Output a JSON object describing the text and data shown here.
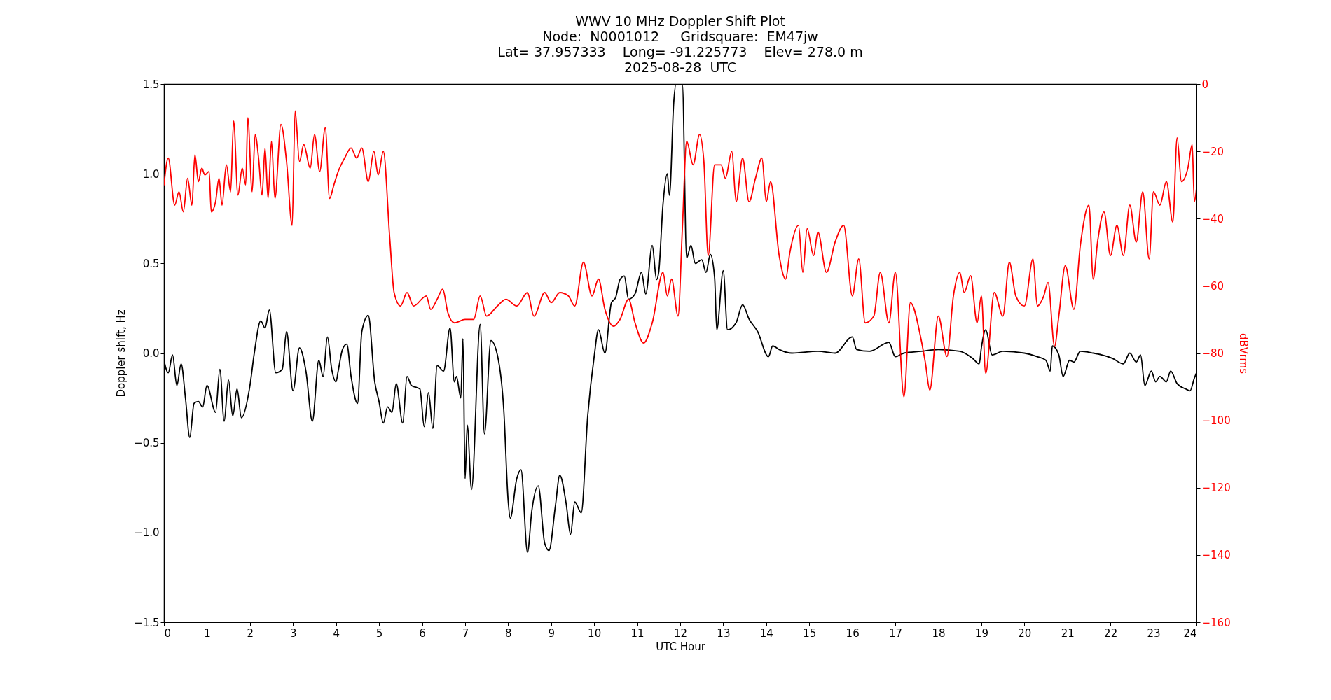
{
  "chart_data": {
    "type": "line",
    "title": "WWV 10 MHz Doppler Shift Plot\nNode:  N0001012     Gridsquare:  EM47jw\nLat= 37.957333    Long= -91.225773    Elev= 278.0 m\n2025-08-28  UTC",
    "xlabel": "UTC Hour",
    "ylabel": "Doppler shift, Hz",
    "y2label": "dBVrms",
    "xlim": [
      0,
      24
    ],
    "xticks": [
      0,
      1,
      2,
      3,
      4,
      5,
      6,
      7,
      8,
      9,
      10,
      11,
      12,
      13,
      14,
      15,
      16,
      17,
      18,
      19,
      20,
      21,
      22,
      23,
      24
    ],
    "ylim": [
      -1.5,
      1.5
    ],
    "yticks": [
      {
        "value": -1.5,
        "label": "−1.5"
      },
      {
        "value": -1.0,
        "label": "−1.0"
      },
      {
        "value": -0.5,
        "label": "−0.5"
      },
      {
        "value": 0,
        "label": "0.0"
      },
      {
        "value": 0.5,
        "label": "0.5"
      },
      {
        "value": 1.0,
        "label": "1.0"
      },
      {
        "value": 1.5,
        "label": "1.5"
      }
    ],
    "y2lim": [
      -160,
      0
    ],
    "y2ticks": [
      {
        "value": -160,
        "label": "−160"
      },
      {
        "value": -140,
        "label": "−140"
      },
      {
        "value": -120,
        "label": "−120"
      },
      {
        "value": -100,
        "label": "−100"
      },
      {
        "value": -80,
        "label": "−80"
      },
      {
        "value": -60,
        "label": "−60"
      },
      {
        "value": -40,
        "label": "−40"
      },
      {
        "value": -20,
        "label": "−20"
      },
      0
    ],
    "ref_lines": [
      {
        "axis": "y",
        "value": 0,
        "color": "#808080"
      }
    ],
    "series": [
      {
        "color": "#000000",
        "x": [
          0,
          0.1,
          0.2,
          0.3,
          0.4,
          0.5,
          0.6,
          0.7,
          0.8,
          0.9,
          1.0,
          1.2,
          1.3,
          1.4,
          1.5,
          1.6,
          1.7,
          1.8,
          2.0,
          2.1,
          2.25,
          2.35,
          2.45,
          2.6,
          2.75,
          2.85,
          3.0,
          3.15,
          3.3,
          3.45,
          3.6,
          3.7,
          3.8,
          3.9,
          4.0,
          4.05,
          4.15,
          4.25,
          4.35,
          4.5,
          4.6,
          4.75,
          4.9,
          5.0,
          5.1,
          5.2,
          5.3,
          5.4,
          5.55,
          5.65,
          5.75,
          5.85,
          5.95,
          6.05,
          6.15,
          6.25,
          6.35,
          6.5,
          6.65,
          6.75,
          6.8,
          6.9,
          6.95,
          7.0,
          7.05,
          7.15,
          7.35,
          7.45,
          7.6,
          7.75,
          7.9,
          8.0,
          8.05,
          8.2,
          8.3,
          8.45,
          8.55,
          8.7,
          8.85,
          8.95,
          9.1,
          9.2,
          9.35,
          9.45,
          9.55,
          9.7,
          9.85,
          10.0,
          10.1,
          10.25,
          10.4,
          10.5,
          10.6,
          10.7,
          10.8,
          10.95,
          11.1,
          11.2,
          11.35,
          11.45,
          11.5,
          11.6,
          11.7,
          11.75,
          11.85,
          11.9,
          12.05,
          12.15,
          12.25,
          12.35,
          12.5,
          12.6,
          12.7,
          12.8,
          12.85,
          13.0,
          13.1,
          13.3,
          13.45,
          13.6,
          13.8,
          14.05,
          14.15,
          14.3,
          14.6,
          15.2,
          15.6,
          16.0,
          16.1,
          16.4,
          16.85,
          17.0,
          17.2,
          17.6,
          18.0,
          18.5,
          18.8,
          18.95,
          19.0,
          19.1,
          19.25,
          19.5,
          20.0,
          20.3,
          20.5,
          20.6,
          20.65,
          20.8,
          20.9,
          21.05,
          21.15,
          21.3,
          21.6,
          21.8,
          22.05,
          22.3,
          22.45,
          22.6,
          22.7,
          22.8,
          22.95,
          23.05,
          23.15,
          23.3,
          23.4,
          23.55,
          23.75,
          23.85,
          23.95,
          24
        ],
        "values": [
          -0.04,
          -0.11,
          -0.01,
          -0.18,
          -0.06,
          -0.25,
          -0.47,
          -0.28,
          -0.27,
          -0.3,
          -0.18,
          -0.33,
          -0.09,
          -0.38,
          -0.15,
          -0.35,
          -0.2,
          -0.36,
          -0.18,
          0.0,
          0.18,
          0.14,
          0.24,
          -0.11,
          -0.09,
          0.12,
          -0.21,
          0.03,
          -0.1,
          -0.38,
          -0.04,
          -0.13,
          0.09,
          -0.09,
          -0.16,
          -0.1,
          0.02,
          0.05,
          -0.13,
          -0.28,
          0.12,
          0.21,
          -0.16,
          -0.27,
          -0.39,
          -0.3,
          -0.33,
          -0.17,
          -0.39,
          -0.13,
          -0.18,
          -0.19,
          -0.2,
          -0.41,
          -0.22,
          -0.42,
          -0.07,
          -0.1,
          0.14,
          -0.16,
          -0.13,
          -0.25,
          0.08,
          -0.7,
          -0.4,
          -0.76,
          0.16,
          -0.45,
          0.07,
          -0.01,
          -0.32,
          -0.82,
          -0.92,
          -0.7,
          -0.65,
          -1.11,
          -0.88,
          -0.74,
          -1.06,
          -1.1,
          -0.85,
          -0.68,
          -0.84,
          -1.01,
          -0.83,
          -0.89,
          -0.35,
          -0.02,
          0.13,
          0.0,
          0.28,
          0.31,
          0.41,
          0.43,
          0.3,
          0.33,
          0.45,
          0.33,
          0.6,
          0.41,
          0.45,
          0.83,
          1.0,
          0.88,
          1.4,
          1.5,
          1.5,
          0.53,
          0.6,
          0.5,
          0.52,
          0.45,
          0.55,
          0.42,
          0.13,
          0.46,
          0.13,
          0.17,
          0.27,
          0.19,
          0.12,
          -0.02,
          0.04,
          0.02,
          0.0,
          0.01,
          0.0,
          0.09,
          0.02,
          0.01,
          0.06,
          -0.02,
          0.0,
          0.01,
          0.02,
          0.01,
          -0.03,
          -0.06,
          0.03,
          0.13,
          -0.01,
          0.01,
          0.0,
          -0.02,
          -0.04,
          -0.1,
          0.04,
          -0.01,
          -0.13,
          -0.04,
          -0.05,
          0.01,
          0.0,
          -0.01,
          -0.03,
          -0.06,
          0.0,
          -0.05,
          -0.01,
          -0.18,
          -0.1,
          -0.16,
          -0.13,
          -0.16,
          -0.1,
          -0.17,
          -0.2,
          -0.21,
          -0.14,
          -0.11
        ]
      },
      {
        "color": "#ff0000",
        "axis": "y2",
        "x": [
          0,
          0.1,
          0.25,
          0.35,
          0.45,
          0.55,
          0.65,
          0.72,
          0.8,
          0.88,
          0.95,
          1.05,
          1.1,
          1.2,
          1.28,
          1.35,
          1.45,
          1.55,
          1.62,
          1.72,
          1.82,
          1.9,
          1.95,
          2.05,
          2.12,
          2.2,
          2.28,
          2.35,
          2.42,
          2.5,
          2.58,
          2.72,
          2.85,
          2.98,
          3.05,
          3.15,
          3.25,
          3.4,
          3.5,
          3.62,
          3.75,
          3.85,
          3.95,
          4.05,
          4.2,
          4.35,
          4.48,
          4.6,
          4.75,
          4.88,
          4.98,
          5.1,
          5.25,
          5.35,
          5.5,
          5.65,
          5.8,
          6.1,
          6.2,
          6.35,
          6.48,
          6.6,
          6.75,
          7.0,
          7.2,
          7.35,
          7.5,
          7.75,
          7.95,
          8.2,
          8.45,
          8.6,
          8.85,
          9.0,
          9.2,
          9.4,
          9.55,
          9.75,
          9.95,
          10.1,
          10.25,
          10.45,
          10.6,
          10.8,
          10.95,
          11.15,
          11.35,
          11.6,
          11.7,
          11.8,
          11.95,
          12.05,
          12.15,
          12.3,
          12.45,
          12.55,
          12.65,
          12.8,
          12.95,
          13.05,
          13.2,
          13.3,
          13.45,
          13.6,
          13.75,
          13.9,
          14.0,
          14.1,
          14.3,
          14.45,
          14.55,
          14.75,
          14.85,
          14.95,
          15.1,
          15.2,
          15.4,
          15.6,
          15.8,
          16.0,
          16.15,
          16.3,
          16.5,
          16.65,
          16.85,
          17.0,
          17.2,
          17.35,
          17.6,
          17.7,
          17.8,
          18.0,
          18.2,
          18.35,
          18.5,
          18.6,
          18.75,
          18.9,
          19.0,
          19.1,
          19.3,
          19.5,
          19.65,
          19.8,
          20.0,
          20.2,
          20.3,
          20.45,
          20.55,
          20.7,
          20.8,
          20.95,
          21.15,
          21.3,
          21.5,
          21.6,
          21.7,
          21.85,
          22.0,
          22.15,
          22.3,
          22.45,
          22.6,
          22.75,
          22.9,
          23.0,
          23.15,
          23.3,
          23.45,
          23.55,
          23.65,
          23.8,
          23.9,
          23.95,
          24
        ],
        "values": [
          -30,
          -22,
          -36,
          -32,
          -38,
          -28,
          -36,
          -21,
          -29,
          -25,
          -27,
          -26,
          -38,
          -35,
          -28,
          -36,
          -24,
          -32,
          -11,
          -33,
          -25,
          -30,
          -10,
          -32,
          -15,
          -22,
          -33,
          -19,
          -34,
          -17,
          -34,
          -12,
          -23,
          -42,
          -8,
          -23,
          -18,
          -25,
          -15,
          -26,
          -13,
          -34,
          -30,
          -26,
          -22,
          -19,
          -22,
          -19,
          -29,
          -20,
          -27,
          -20,
          -46,
          -62,
          -66,
          -62,
          -66,
          -63,
          -67,
          -64,
          -61,
          -68,
          -71,
          -70,
          -70,
          -63,
          -69,
          -66,
          -64,
          -66,
          -62,
          -69,
          -62,
          -65,
          -62,
          -63,
          -66,
          -53,
          -63,
          -58,
          -67,
          -72,
          -70,
          -64,
          -71,
          -77,
          -71,
          -56,
          -63,
          -58,
          -69,
          -43,
          -17,
          -24,
          -15,
          -23,
          -51,
          -24,
          -24,
          -28,
          -20,
          -35,
          -22,
          -35,
          -28,
          -22,
          -35,
          -29,
          -51,
          -58,
          -50,
          -42,
          -56,
          -43,
          -51,
          -44,
          -56,
          -47,
          -42,
          -63,
          -52,
          -71,
          -69,
          -56,
          -71,
          -56,
          -93,
          -65,
          -76,
          -83,
          -91,
          -69,
          -81,
          -63,
          -56,
          -62,
          -57,
          -71,
          -63,
          -86,
          -62,
          -69,
          -53,
          -63,
          -66,
          -52,
          -66,
          -63,
          -59,
          -78,
          -69,
          -54,
          -67,
          -48,
          -36,
          -58,
          -47,
          -38,
          -51,
          -42,
          -51,
          -36,
          -47,
          -32,
          -52,
          -32,
          -36,
          -29,
          -41,
          -16,
          -29,
          -25,
          -18,
          -35,
          -31
        ]
      }
    ]
  }
}
